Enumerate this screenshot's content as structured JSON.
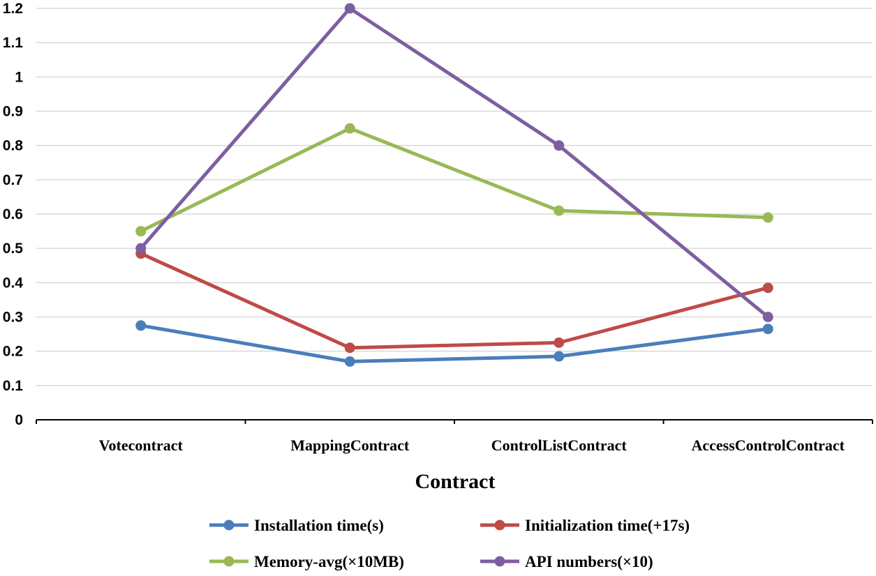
{
  "chart_data": {
    "type": "line",
    "xlabel": "Contract",
    "ylabel": "",
    "ylim": [
      0,
      1.2
    ],
    "y_ticks": [
      "0",
      "0.1",
      "0.2",
      "0.3",
      "0.4",
      "0.5",
      "0.6",
      "0.7",
      "0.8",
      "0.9",
      "1",
      "1.1",
      "1.2"
    ],
    "categories": [
      "Votecontract",
      "MappingContract",
      "ControlListContract",
      "AccessControlContract"
    ],
    "grid": true,
    "legend_position": "bottom",
    "series": [
      {
        "name": "Installation time(s)",
        "color": "#4a7ebb",
        "values": [
          0.275,
          0.17,
          0.185,
          0.265
        ]
      },
      {
        "name": "Initialization time(+17s)",
        "color": "#be4b48",
        "values": [
          0.485,
          0.21,
          0.225,
          0.385
        ]
      },
      {
        "name": "Memory-avg(×10MB)",
        "color": "#98b954",
        "values": [
          0.55,
          0.85,
          0.61,
          0.59
        ]
      },
      {
        "name": "API numbers(×10)",
        "color": "#7d5fa0",
        "values": [
          0.5,
          1.2,
          0.8,
          0.3
        ]
      }
    ]
  }
}
